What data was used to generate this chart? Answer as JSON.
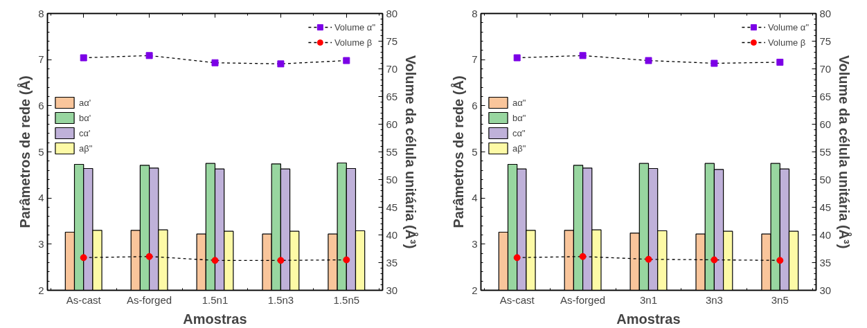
{
  "chart_data": [
    {
      "type": "bar",
      "categories": [
        "As-cast",
        "As-forged",
        "1.5n1",
        "1.5n3",
        "1.5n5"
      ],
      "xlabel": "Amostras",
      "ylabel": "Parâmetros de rede (Å)",
      "y2label": "Volume da célula unitária (Å³)",
      "ylim": [
        2,
        8
      ],
      "yticks": [
        2,
        3,
        4,
        5,
        6,
        7,
        8
      ],
      "y2lim": [
        30,
        80
      ],
      "y2ticks": [
        30,
        35,
        40,
        45,
        50,
        55,
        60,
        65,
        70,
        75,
        80
      ],
      "legend": "top right",
      "grid": false,
      "series": [
        {
          "name": "aα'",
          "color": "#f9c59b",
          "values": [
            3.26,
            3.3,
            3.22,
            3.22,
            3.22
          ]
        },
        {
          "name": "bα'",
          "color": "#98d6a0",
          "values": [
            4.73,
            4.71,
            4.75,
            4.74,
            4.76
          ]
        },
        {
          "name": "cα'",
          "color": "#bfb1d9",
          "values": [
            4.64,
            4.65,
            4.63,
            4.63,
            4.64
          ]
        },
        {
          "name": "aβ\"",
          "color": "#fdfaa6",
          "values": [
            3.3,
            3.31,
            3.28,
            3.28,
            3.29
          ]
        },
        {
          "name": "Volume α\"",
          "type": "line",
          "axis": "y2",
          "marker": "square",
          "line_style": "dashed",
          "color": "#7b00e6",
          "values": [
            72.0,
            72.4,
            71.1,
            70.9,
            71.5
          ]
        },
        {
          "name": "Volume β",
          "type": "line",
          "axis": "y2",
          "marker": "circle",
          "line_style": "dashed",
          "color": "#ff0000",
          "values": [
            35.9,
            36.1,
            35.4,
            35.4,
            35.5
          ]
        }
      ]
    },
    {
      "type": "bar",
      "categories": [
        "As-cast",
        "As-forged",
        "3n1",
        "3n3",
        "3n5"
      ],
      "xlabel": "Amostras",
      "ylabel": "Parâmetros de rede (Å)",
      "y2label": "Volume da célula unitária (Å³)",
      "ylim": [
        2,
        8
      ],
      "yticks": [
        2,
        3,
        4,
        5,
        6,
        7,
        8
      ],
      "y2lim": [
        30,
        80
      ],
      "y2ticks": [
        30,
        35,
        40,
        45,
        50,
        55,
        60,
        65,
        70,
        75,
        80
      ],
      "legend": "top right",
      "grid": false,
      "series": [
        {
          "name": "aα\"",
          "color": "#f9c59b",
          "values": [
            3.26,
            3.3,
            3.24,
            3.22,
            3.22
          ]
        },
        {
          "name": "bα\"",
          "color": "#98d6a0",
          "values": [
            4.73,
            4.71,
            4.75,
            4.75,
            4.75
          ]
        },
        {
          "name": "cα\"",
          "color": "#bfb1d9",
          "values": [
            4.63,
            4.65,
            4.64,
            4.62,
            4.63
          ]
        },
        {
          "name": "aβ\"",
          "color": "#fdfaa6",
          "values": [
            3.3,
            3.31,
            3.29,
            3.28,
            3.28
          ]
        },
        {
          "name": "Volume α\"",
          "type": "line",
          "axis": "y2",
          "marker": "square",
          "line_style": "dashed",
          "color": "#7b00e6",
          "values": [
            72.0,
            72.4,
            71.5,
            71.0,
            71.2
          ]
        },
        {
          "name": "Volume β",
          "type": "line",
          "axis": "y2",
          "marker": "circle",
          "line_style": "dashed",
          "color": "#ff0000",
          "values": [
            35.9,
            36.1,
            35.6,
            35.5,
            35.4
          ]
        }
      ]
    }
  ]
}
